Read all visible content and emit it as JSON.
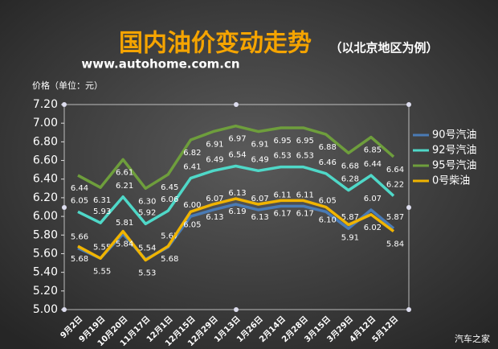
{
  "header": {
    "title": "国内油价变动走势",
    "subtitle": "（以北京地区为例）",
    "url": "www.autohome.com.cn",
    "watermark": "汽车之家"
  },
  "chart_data": {
    "type": "line",
    "y_label": "价格（单位：元）",
    "categories": [
      "9月2日",
      "9月19日",
      "10月20日",
      "11月17日",
      "12月1日",
      "12月15日",
      "12月29日",
      "1月13日",
      "1月26日",
      "2月14日",
      "2月28日",
      "3月15日",
      "3月29日",
      "4月12日",
      "5月12日"
    ],
    "series": [
      {
        "name": "90号汽油",
        "color": "#4a7bb5",
        "values": [
          5.66,
          5.55,
          5.81,
          5.54,
          5.67,
          6.0,
          6.07,
          6.13,
          6.07,
          6.11,
          6.11,
          6.05,
          5.87,
          6.07,
          5.87
        ],
        "value_labels": [
          "5.66",
          "5.55",
          "5.81",
          "5.54",
          "5.67",
          "6.00",
          "6.07",
          "6.13",
          "6.07",
          "6.11",
          "6.11",
          "6.05",
          "5.87",
          "6.07",
          "5.87"
        ]
      },
      {
        "name": "92号汽油",
        "color": "#4fd8c8",
        "values": [
          6.05,
          5.93,
          6.21,
          5.92,
          6.06,
          6.41,
          6.49,
          6.54,
          6.49,
          6.53,
          6.53,
          6.46,
          6.28,
          6.44,
          6.22
        ],
        "value_labels": [
          "6.05",
          "5.93",
          "6.21",
          "5.92",
          "6.06",
          "6.41",
          "6.49",
          "6.54",
          "6.49",
          "6.53",
          "6.53",
          "6.46",
          "6.28",
          "6.44",
          "6.22"
        ]
      },
      {
        "name": "95号汽油",
        "color": "#6e9e3c",
        "values": [
          6.44,
          6.31,
          6.61,
          6.3,
          6.45,
          6.82,
          6.91,
          6.97,
          6.91,
          6.95,
          6.95,
          6.88,
          6.68,
          6.85,
          6.64
        ],
        "value_labels": [
          "6.44",
          "6.31",
          "6.61",
          "6.30",
          "6.45",
          "6.82",
          "6.91",
          "6.97",
          "6.91",
          "6.95",
          "6.95",
          "6.88",
          "6.68",
          "6.85",
          "6.64"
        ]
      },
      {
        "name": "0号柴油",
        "color": "#f0b400",
        "values": [
          5.68,
          5.55,
          5.84,
          5.53,
          5.68,
          6.05,
          6.13,
          6.19,
          6.13,
          6.17,
          6.17,
          6.1,
          5.91,
          6.02,
          5.84
        ],
        "value_labels": [
          "5.68",
          "5.55",
          "5.84",
          "5.53",
          "5.68",
          "6.05",
          "6.13",
          "6.19",
          "6.13",
          "6.17",
          "6.17",
          "6.10",
          "5.91",
          "6.02",
          "5.84"
        ]
      }
    ],
    "ylim": [
      5.0,
      7.2
    ],
    "yticks": [
      {
        "value": 5.0,
        "label": "5.00"
      },
      {
        "value": 5.2,
        "label": "5.20"
      },
      {
        "value": 5.4,
        "label": "5.40"
      },
      {
        "value": 5.6,
        "label": "5.60"
      },
      {
        "value": 5.8,
        "label": "5.80"
      },
      {
        "value": 6.0,
        "label": "6.00"
      },
      {
        "value": 6.2,
        "label": "6.20"
      },
      {
        "value": 6.4,
        "label": "6.40"
      },
      {
        "value": 6.6,
        "label": "6.60"
      },
      {
        "value": 6.8,
        "label": "6.80"
      },
      {
        "value": 7.0,
        "label": "7.00"
      },
      {
        "value": 7.2,
        "label": "7.20"
      }
    ],
    "legend": "right"
  }
}
